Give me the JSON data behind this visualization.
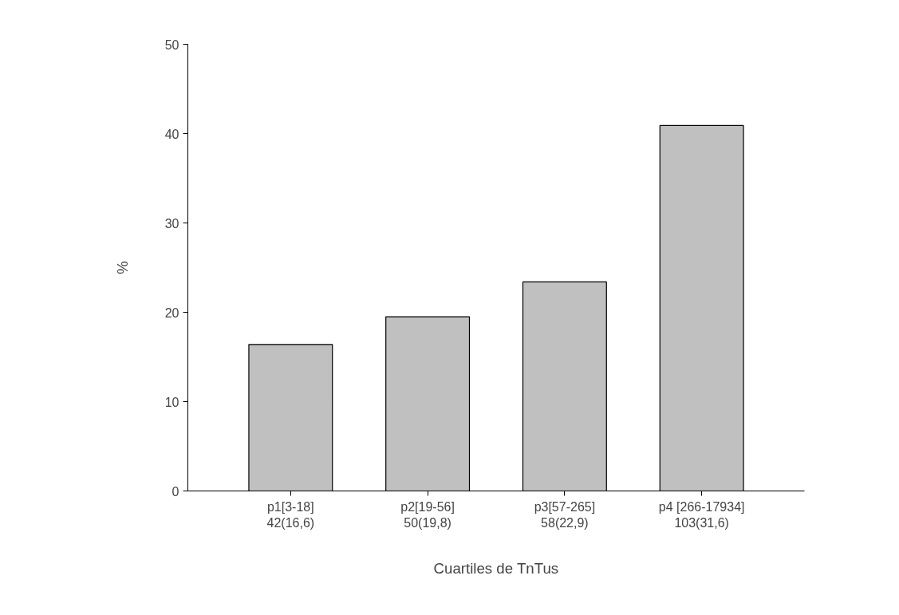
{
  "chart_data": {
    "type": "bar",
    "xlabel": "Cuartiles de TnTus",
    "ylabel": "%",
    "categories": [
      "p1[3-18]\n42(16,6)",
      "p2[19-56]\n50(19,8)",
      "p3[57-265]\n58(22,9)",
      "p4 [266-17934]\n103(31,6)"
    ],
    "values": [
      16.4,
      19.5,
      23.4,
      40.9
    ],
    "color": "#c0c0c0",
    "ylim": [
      0,
      50
    ],
    "yticks": [
      0,
      10,
      20,
      30,
      40,
      50
    ],
    "grid": false
  }
}
